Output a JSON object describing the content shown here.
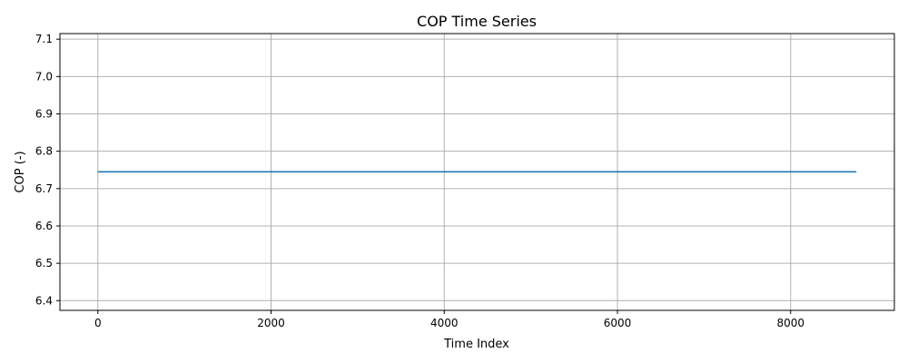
{
  "chart_data": {
    "type": "line",
    "title": "COP Time Series",
    "xlabel": "Time Index",
    "ylabel": "COP (-)",
    "xlim": [
      -438,
      9198
    ],
    "ylim": [
      6.374,
      7.115
    ],
    "xticks": [
      0,
      2000,
      4000,
      6000,
      8000
    ],
    "xtick_labels": [
      "0",
      "2000",
      "4000",
      "6000",
      "8000"
    ],
    "yticks": [
      6.4,
      6.5,
      6.6,
      6.7,
      6.8,
      6.9,
      7.0,
      7.1
    ],
    "ytick_labels": [
      "6.4",
      "6.5",
      "6.6",
      "6.7",
      "6.8",
      "6.9",
      "7.0",
      "7.1"
    ],
    "grid": true,
    "series": [
      {
        "color": "#1f77b4",
        "x": [
          0,
          8759
        ],
        "y": [
          6.745,
          6.745
        ]
      }
    ]
  }
}
